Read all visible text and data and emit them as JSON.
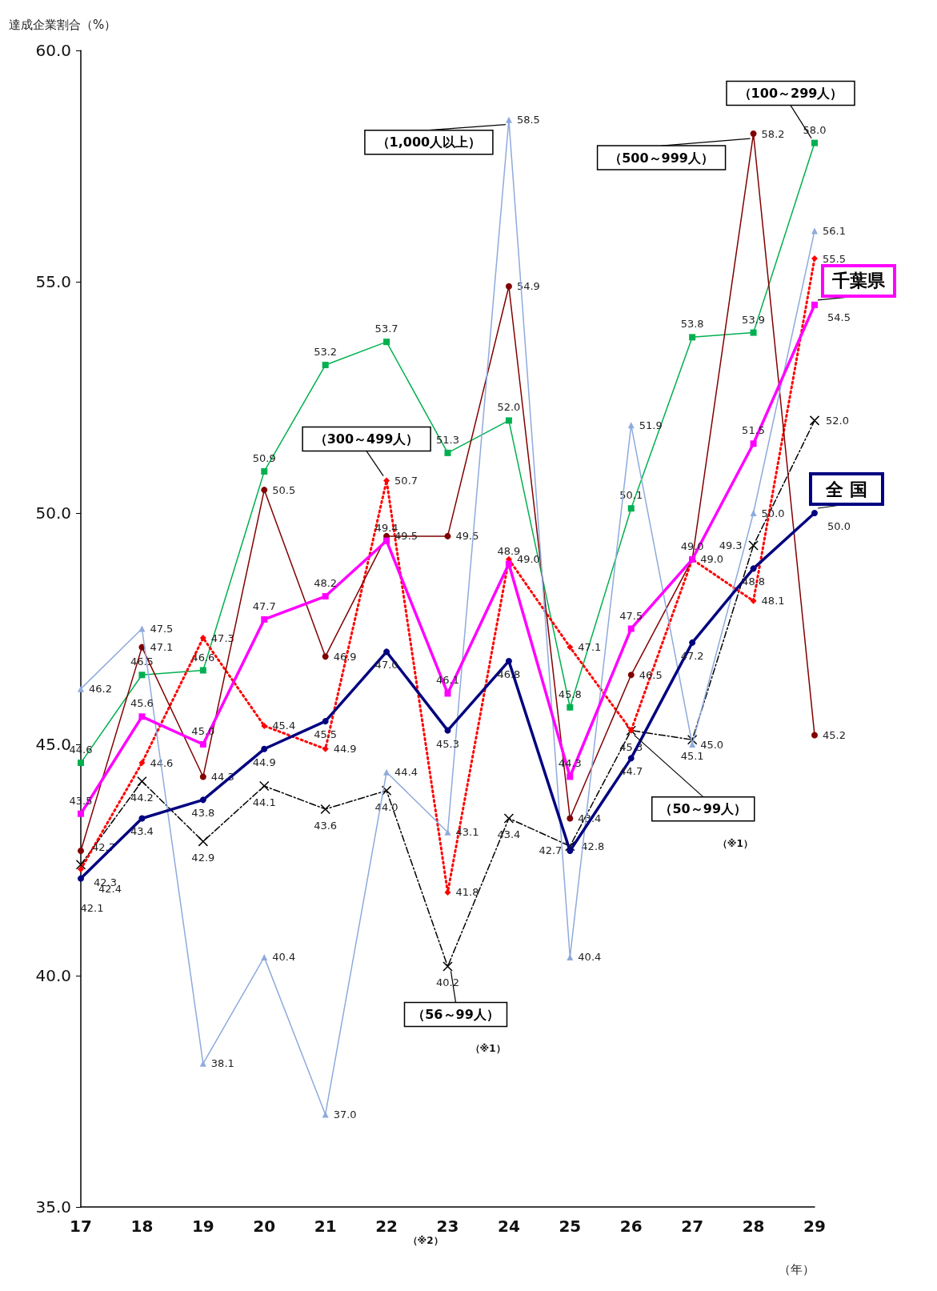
{
  "chart_data": {
    "type": "line",
    "ylabel": "達成企業割合（%）",
    "xlabel": "（年）",
    "categories": [
      "17",
      "18",
      "19",
      "20",
      "21",
      "22",
      "23",
      "24",
      "25",
      "26",
      "27",
      "28",
      "29"
    ],
    "ylim": [
      35,
      60
    ],
    "yticks": [
      {
        "value": 35,
        "label": "35.0"
      },
      {
        "value": 40,
        "label": "40.0"
      },
      {
        "value": 45,
        "label": "45.0"
      },
      {
        "value": 50,
        "label": "50.0"
      },
      {
        "value": 55,
        "label": "55.0"
      },
      {
        "value": 60,
        "label": "60.0"
      }
    ],
    "grid": false,
    "series": [
      {
        "color": "#000080",
        "marker": "circle",
        "line_style": "solid",
        "values": [
          42.1,
          43.4,
          43.8,
          44.9,
          45.5,
          47.0,
          45.3,
          46.8,
          42.7,
          44.7,
          47.2,
          48.8,
          50.0
        ],
        "value_labels": [
          "42.1",
          "43.4",
          "43.8",
          "44.9",
          "45.5",
          "47.0",
          "45.3",
          "46.8",
          "42.7",
          "44.7",
          "47.2",
          "48.8",
          "50.0"
        ]
      },
      {
        "color": "#ff00ff",
        "marker": "square",
        "line_style": "solid",
        "values": [
          43.5,
          45.6,
          45.0,
          47.7,
          48.2,
          49.4,
          46.1,
          48.9,
          44.3,
          47.5,
          49.0,
          51.5,
          54.5
        ],
        "value_labels": [
          "43.5",
          "45.6",
          "45.0",
          "47.7",
          "48.2",
          "49.4",
          "46.1",
          "48.9",
          "44.3",
          "47.5",
          "49.0",
          "51.5",
          "54.5"
        ]
      },
      {
        "color": "#8faadc",
        "marker": "triangle",
        "line_style": "solid",
        "values": [
          46.2,
          47.5,
          38.1,
          40.4,
          37.0,
          44.4,
          43.1,
          58.5,
          40.4,
          51.9,
          45.0,
          50.0,
          56.1
        ],
        "value_labels": [
          "46.2",
          "47.5",
          "38.1",
          "40.4",
          "37.0",
          "44.4",
          "43.1",
          "58.5",
          "40.4",
          "51.9",
          "45.0",
          "50.0",
          "56.1"
        ]
      },
      {
        "color": "#800000",
        "marker": "circle",
        "line_style": "solid",
        "values": [
          42.7,
          47.1,
          44.3,
          50.5,
          46.9,
          49.5,
          49.5,
          54.9,
          43.4,
          46.5,
          49.0,
          58.2,
          45.2
        ],
        "value_labels": [
          "42.7",
          "47.1",
          "44.3",
          "50.5",
          "46.9",
          "49.5",
          "49.5",
          "54.9",
          "43.4",
          "46.5",
          "49.0",
          "58.2",
          "45.2"
        ]
      },
      {
        "color": "#ff0000",
        "marker": "diamond",
        "line_style": "dotted",
        "values": [
          42.3,
          44.6,
          47.3,
          45.4,
          44.9,
          50.7,
          41.8,
          49.0,
          47.1,
          45.3,
          49.0,
          48.1,
          55.5
        ],
        "value_labels": [
          "42.3",
          "44.6",
          "47.3",
          "45.4",
          "44.9",
          "50.7",
          "41.8",
          "49.0",
          "47.1",
          null,
          null,
          "48.1",
          "55.5"
        ]
      },
      {
        "color": "#00b050",
        "marker": "square",
        "line_style": "solid",
        "values": [
          44.6,
          46.5,
          46.6,
          50.9,
          53.2,
          53.7,
          51.3,
          52.0,
          45.8,
          50.1,
          53.8,
          53.9,
          58.0
        ],
        "value_labels": [
          "44.6",
          "46.5",
          "46.6",
          "50.9",
          "53.2",
          "53.7",
          "51.3",
          "52.0",
          "45.8",
          "50.1",
          "53.8",
          "53.9",
          "58.0"
        ]
      },
      {
        "color": "#000000",
        "marker": "cross",
        "line_style": "dashed",
        "values": [
          42.4,
          44.2,
          42.9,
          44.1,
          43.6,
          44.0,
          40.2,
          43.4,
          42.8,
          45.3,
          45.1,
          49.3,
          52.0
        ],
        "value_labels": [
          "42.4",
          "44.2",
          "42.9",
          "44.1",
          "43.6",
          "44.0",
          "40.2",
          "43.4",
          "42.8",
          "45.3",
          "45.1",
          "49.3",
          "52.0"
        ]
      }
    ],
    "annotations": [
      {
        "text": "（1,000人以上）",
        "x": "24",
        "y": 58.5
      },
      {
        "text": "（500～999人）",
        "x": "28",
        "y": 58.2
      },
      {
        "text": "（100～299人）",
        "x": "29",
        "y": 58.0
      },
      {
        "text": "（300～499人）",
        "x": "22",
        "y": 50.7
      },
      {
        "text": "（56～99人）",
        "x": "23",
        "y": 40.2
      },
      "（※1）",
      {
        "text": "（50～99人）",
        "x": "26",
        "y": 45.3
      },
      "（※1）",
      {
        "text": "千葉県",
        "x": "29",
        "y": 54.5
      },
      {
        "text": "全 国",
        "x": "29",
        "y": 50.0
      },
      "（※2）"
    ]
  }
}
